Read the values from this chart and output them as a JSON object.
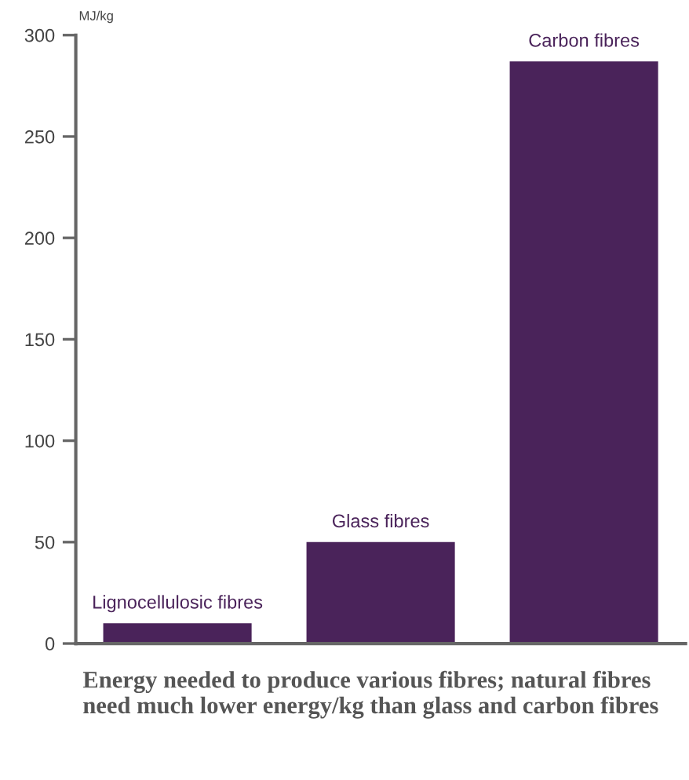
{
  "chart_data": {
    "type": "bar",
    "ylabel": "MJ/kg",
    "categories": [
      "Lignocellulosic fibres",
      "Glass fibres",
      "Carbon fibres"
    ],
    "values": [
      10,
      50,
      287
    ],
    "color": "#4a235a",
    "ylim": [
      0,
      300
    ],
    "yticks": [
      0,
      50,
      100,
      150,
      200,
      250,
      300
    ],
    "grid": false,
    "annotations": [
      "Energy needed to produce various fibres; natural fibres need much lower energy/kg than glass and carbon fibres"
    ]
  }
}
